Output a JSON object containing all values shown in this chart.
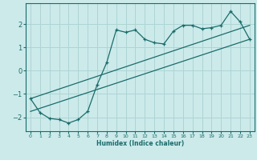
{
  "xlabel": "Humidex (Indice chaleur)",
  "bg_color": "#cceaea",
  "grid_color": "#aed4d4",
  "line_color": "#1a6b6b",
  "xlim": [
    -0.5,
    23.5
  ],
  "ylim": [
    -2.6,
    2.9
  ],
  "yticks": [
    -2,
    -1,
    0,
    1,
    2
  ],
  "xticks": [
    0,
    1,
    2,
    3,
    4,
    5,
    6,
    7,
    8,
    9,
    10,
    11,
    12,
    13,
    14,
    15,
    16,
    17,
    18,
    19,
    20,
    21,
    22,
    23
  ],
  "line1_x": [
    0,
    1,
    2,
    3,
    4,
    5,
    6,
    7,
    8,
    9,
    10,
    11,
    12,
    13,
    14,
    15,
    16,
    17,
    18,
    19,
    20,
    21,
    22,
    23
  ],
  "line1_y": [
    -1.2,
    -1.8,
    -2.05,
    -2.1,
    -2.25,
    -2.1,
    -1.75,
    -0.6,
    0.35,
    1.75,
    1.65,
    1.75,
    1.35,
    1.2,
    1.15,
    1.7,
    1.95,
    1.95,
    1.8,
    1.85,
    1.95,
    2.55,
    2.1,
    1.35
  ],
  "line2_x": [
    0,
    23
  ],
  "line2_y": [
    -1.75,
    1.35
  ],
  "line3_x": [
    0,
    23
  ],
  "line3_y": [
    -1.2,
    1.95
  ]
}
